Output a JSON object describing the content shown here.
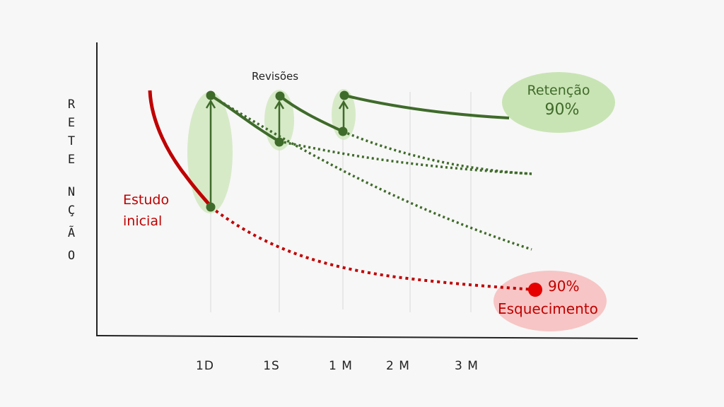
{
  "y_axis_label": [
    "R",
    "E",
    "T",
    "E",
    "N",
    "Ç",
    "Ã",
    "O"
  ],
  "x_ticks": [
    "1D",
    "1S",
    "1 M",
    "2 M",
    "3 M"
  ],
  "labels": {
    "revisoes": "Revisões",
    "estudo_line1": "Estudo",
    "estudo_line2": "inicial",
    "retencao_title": "Retenção",
    "retencao_value": "90%",
    "esquecimento_value": "90%",
    "esquecimento_title": "Esquecimento"
  },
  "colors": {
    "red": "#c00000",
    "green": "#3f6b2a",
    "green_light": "#c9e4b4",
    "pink_light": "#f7c5c5"
  }
}
